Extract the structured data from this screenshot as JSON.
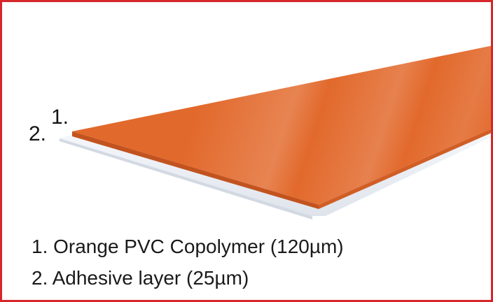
{
  "diagram": {
    "markers": {
      "top_layer": "1.",
      "bottom_layer": "2."
    },
    "legend": [
      "1. Orange PVC Copolymer (120µm)",
      "2. Adhesive layer (25µm)"
    ],
    "colors": {
      "frame": "#d6262a",
      "pvc_layer": "#e2692c",
      "pvc_edge": "#c2531f",
      "adhesive_layer": "#eef1f6"
    }
  }
}
